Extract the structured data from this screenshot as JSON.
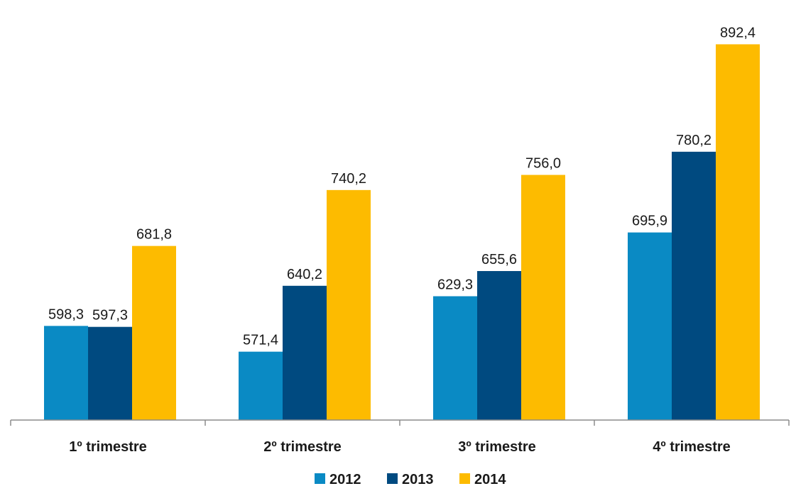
{
  "chart_data": {
    "type": "bar",
    "categories": [
      "1º trimestre",
      "2º trimestre",
      "3º trimestre",
      "4º trimestre"
    ],
    "series": [
      {
        "name": "2012",
        "color": "#0a8ac4",
        "values": [
          598.3,
          571.4,
          629.3,
          695.9
        ],
        "labels": [
          "598,3",
          "571,4",
          "629,3",
          "695,9"
        ]
      },
      {
        "name": "2013",
        "color": "#004a80",
        "values": [
          597.3,
          640.2,
          655.6,
          780.2
        ],
        "labels": [
          "597,3",
          "640,2",
          "655,6",
          "780,2"
        ]
      },
      {
        "name": "2014",
        "color": "#fdbb00",
        "values": [
          681.8,
          740.2,
          756.0,
          892.4
        ],
        "labels": [
          "681,8",
          "740,2",
          "756,0",
          "892,4"
        ]
      }
    ],
    "ylim": [
      500,
      900
    ],
    "grid": false,
    "legend_position": "bottom-center",
    "axis_color": "#8c8c8c"
  }
}
